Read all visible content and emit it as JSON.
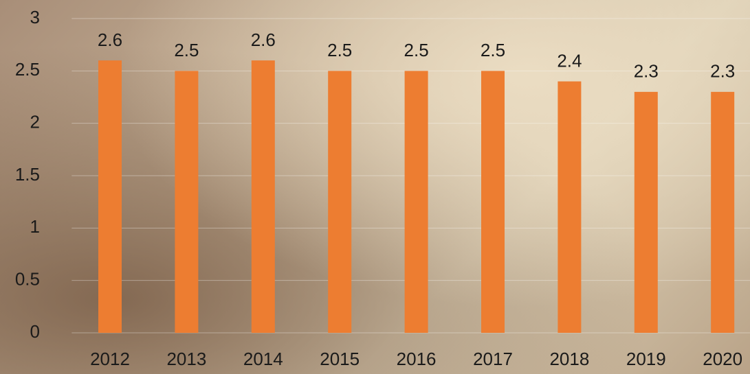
{
  "chart_data": {
    "type": "bar",
    "categories": [
      "2012",
      "2013",
      "2014",
      "2015",
      "2016",
      "2017",
      "2018",
      "2019",
      "2020"
    ],
    "values": [
      2.6,
      2.5,
      2.6,
      2.5,
      2.5,
      2.5,
      2.4,
      2.3,
      2.3
    ],
    "color": "#ed7d31",
    "ylim": [
      0,
      3
    ],
    "yticks": [
      0,
      0.5,
      1,
      1.5,
      2,
      2.5,
      3
    ],
    "grid": true
  }
}
